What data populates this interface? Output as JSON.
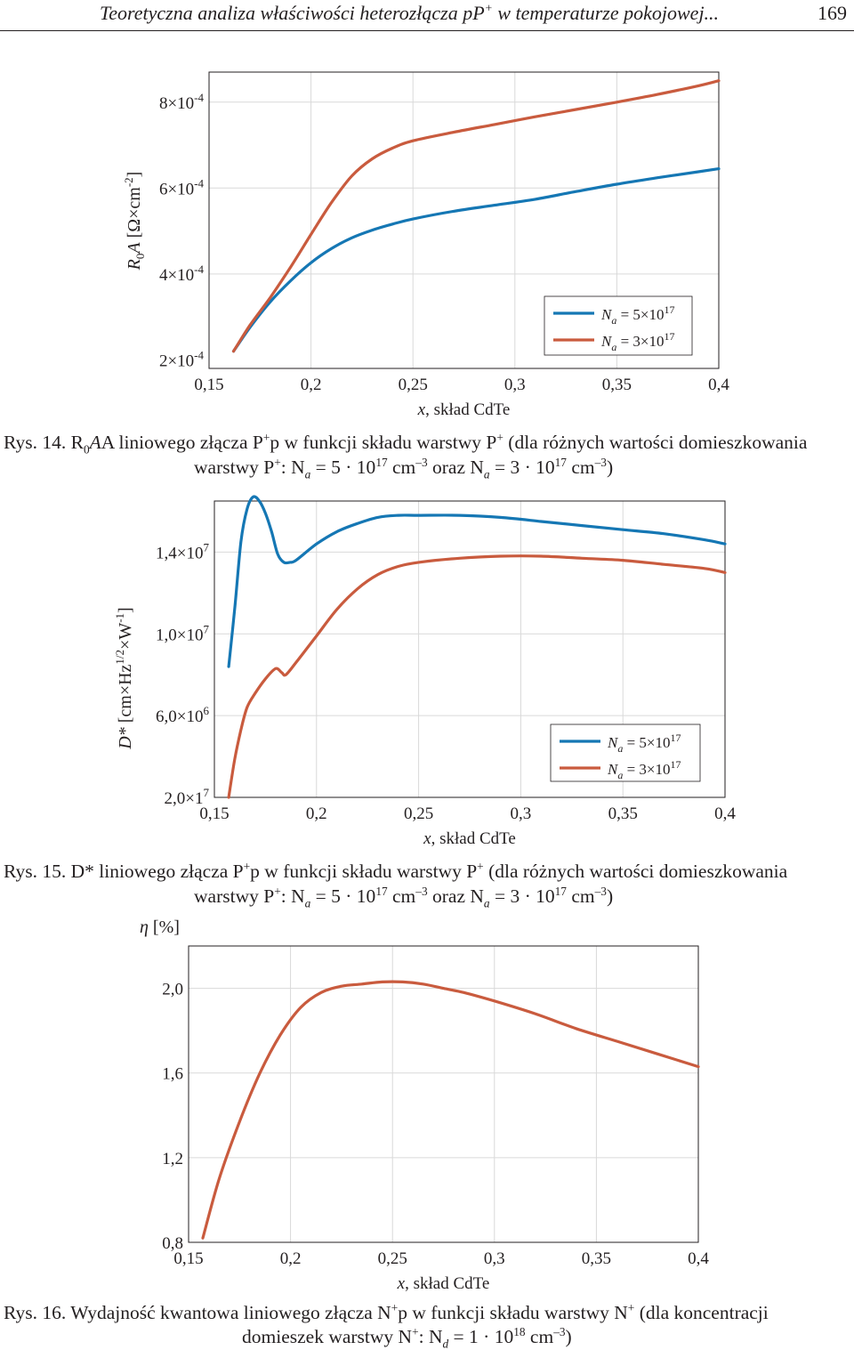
{
  "header": {
    "title": "Teoretyczna analiza właściwości heterozłącza pP",
    "title_sup": "+",
    "title_tail": " w temperaturze pokojowej...",
    "page_number": "169"
  },
  "legend_common": {
    "entry1": {
      "pre": "N",
      "sub": "a",
      "mid": " = 5×10",
      "exp": "17"
    },
    "entry2": {
      "pre": "N",
      "sub": "a",
      "mid": " = 3×10",
      "exp": "17"
    },
    "color1": "#1577b4",
    "color2": "#c95b3e"
  },
  "figure14": {
    "caption_line1": "Rys. 14. R",
    "caption_sub1": "0",
    "caption_line1_b": "A liniowego złącza P",
    "caption_line1_c": "p w funkcji składu warstwy P",
    "caption_line1_d": " (dla różnych wartości domieszkowania",
    "caption_line2_a": "warstwy P",
    "caption_line2_b": ": N",
    "caption_line2_c": " = 5 · 10",
    "caption_line2_d": " cm",
    "caption_line2_e": " oraz N",
    "caption_line2_f": " = 3 · 10",
    "caption_line2_g": " cm",
    "caption_line2_h": ")",
    "sup_plus": "+",
    "sub_a": "a",
    "sup_17": "17",
    "sup_m3": "–3",
    "chart_data": {
      "type": "line",
      "ylabel": "R0A [Ω×cm-2]",
      "xlabel": "x, skład CdTe",
      "xlim": [
        0.15,
        0.4
      ],
      "ylim": [
        0.00018,
        0.00087
      ],
      "xticks": [
        "0,15",
        "0,2",
        "0,25",
        "0,3",
        "0,35",
        "0,4"
      ],
      "yticks": [
        "2×10-4",
        "4×10-4",
        "6×10-4",
        "8×10-4"
      ],
      "grid": true,
      "legend": "bottom-right",
      "series": [
        {
          "name": "Na = 5×10^17",
          "x": [
            0.162,
            0.17,
            0.18,
            0.19,
            0.2,
            0.21,
            0.22,
            0.23,
            0.24,
            0.25,
            0.27,
            0.29,
            0.31,
            0.33,
            0.35,
            0.37,
            0.39,
            0.4
          ],
          "y": [
            0.00022,
            0.000275,
            0.000335,
            0.000384,
            0.000426,
            0.000459,
            0.000484,
            0.000502,
            0.000516,
            0.000528,
            0.000546,
            0.00056,
            0.000574,
            0.000592,
            0.000609,
            0.000624,
            0.000638,
            0.000645
          ]
        },
        {
          "name": "Na = 3×10^17",
          "x": [
            0.162,
            0.17,
            0.18,
            0.19,
            0.2,
            0.21,
            0.22,
            0.23,
            0.24,
            0.25,
            0.27,
            0.29,
            0.31,
            0.33,
            0.35,
            0.37,
            0.39,
            0.4
          ],
          "y": [
            0.00022,
            0.00028,
            0.000345,
            0.000416,
            0.000492,
            0.000566,
            0.000628,
            0.000668,
            0.000693,
            0.00071,
            0.00073,
            0.000748,
            0.000766,
            0.000783,
            0.0008,
            0.000818,
            0.000838,
            0.00085
          ]
        }
      ]
    },
    "ylabel_R": "R",
    "ylabel_sub": "0",
    "ylabel_A": "A",
    "ylabel_unit": " [Ω×cm",
    "ylabel_exp": "-2",
    "ylabel_close": "]",
    "ytick_labels": [
      {
        "m": "2×10",
        "e": "-4"
      },
      {
        "m": "4×10",
        "e": "-4"
      },
      {
        "m": "6×10",
        "e": "-4"
      },
      {
        "m": "8×10",
        "e": "-4"
      }
    ],
    "xlabel_x": "x",
    "xlabel_rest": ", skład CdTe"
  },
  "figure15": {
    "caption_line1_a": "Rys. 15. D* liniowego złącza P",
    "caption_line1_b": "p w funkcji składu warstwy P",
    "caption_line1_c": " (dla różnych wartości domieszkowania",
    "chart_data": {
      "type": "line",
      "ylabel": "D* [cm×Hz1/2×W-1]",
      "xlabel": "x, skład CdTe",
      "xlim": [
        0.15,
        0.4
      ],
      "ylim": [
        2000000,
        16500000
      ],
      "xticks": [
        "0,15",
        "0,2",
        "0,25",
        "0,3",
        "0,35",
        "0,4"
      ],
      "yticks": [
        "2,0×17",
        "6,0×106",
        "1,0×107",
        "1,4×107"
      ],
      "grid": true,
      "legend": "bottom-right",
      "series": [
        {
          "name": "Na = 5×10^17",
          "x": [
            0.157,
            0.16,
            0.163,
            0.166,
            0.169,
            0.172,
            0.175,
            0.178,
            0.181,
            0.184,
            0.187,
            0.19,
            0.2,
            0.21,
            0.22,
            0.23,
            0.24,
            0.25,
            0.27,
            0.29,
            0.31,
            0.33,
            0.35,
            0.37,
            0.39,
            0.4
          ],
          "y": [
            8400000,
            11300000,
            14500000,
            16100000,
            16700000,
            16500000,
            15900000,
            15000000,
            13900000,
            13500000,
            13500000,
            13600000,
            14400000,
            15000000,
            15400000,
            15700000,
            15800000,
            15800000,
            15800000,
            15700000,
            15500000,
            15300000,
            15100000,
            14900000,
            14600000,
            14400000
          ]
        },
        {
          "name": "Na = 3×10^17",
          "x": [
            0.157,
            0.16,
            0.163,
            0.166,
            0.17,
            0.175,
            0.18,
            0.183,
            0.185,
            0.19,
            0.2,
            0.21,
            0.22,
            0.23,
            0.24,
            0.25,
            0.27,
            0.29,
            0.31,
            0.33,
            0.35,
            0.37,
            0.39,
            0.4
          ],
          "y": [
            2000000,
            3900000,
            5300000,
            6400000,
            7100000,
            7800000,
            8300000,
            8100000,
            8000000,
            8600000,
            9900000,
            11200000,
            12200000,
            12900000,
            13300000,
            13500000,
            13700000,
            13800000,
            13800000,
            13700000,
            13600000,
            13400000,
            13200000,
            13000000
          ]
        }
      ]
    },
    "ylabel_D": "D*",
    "ylabel_unit": " [cm×Hz",
    "ylabel_exp1": "1/2",
    "ylabel_mid": "×W",
    "ylabel_exp2": "-1",
    "ylabel_close": "]",
    "ytick_labels": [
      {
        "m": "2,0×1",
        "e": "7"
      },
      {
        "m": "6,0×10",
        "e": "6"
      },
      {
        "m": "1,0×10",
        "e": "7"
      },
      {
        "m": "1,4×10",
        "e": "7"
      }
    ]
  },
  "figure16": {
    "caption_line1_a": "Rys. 16. Wydajność kwantowa liniowego złącza N",
    "caption_line1_b": "p w funkcji składu warstwy N",
    "caption_line1_c": " (dla koncentracji",
    "caption_line2_a": "domieszek warstwy N",
    "caption_line2_b": ": N",
    "caption_line2_sub": "d",
    "caption_line2_c": " = 1 · 10",
    "caption_line2_exp": "18",
    "caption_line2_d": " cm",
    "caption_line2_e": ")",
    "chart_data": {
      "type": "line",
      "ylabel": "η [%]",
      "xlabel": "x, skład CdTe",
      "xlim": [
        0.15,
        0.4
      ],
      "ylim": [
        0.8,
        2.2
      ],
      "xticks": [
        "0,15",
        "0,2",
        "0,25",
        "0,3",
        "0,35",
        "0,4"
      ],
      "yticks": [
        "0,8",
        "1,2",
        "1,6",
        "2,0"
      ],
      "grid": true,
      "series": [
        {
          "x": [
            0.157,
            0.165,
            0.175,
            0.185,
            0.195,
            0.205,
            0.215,
            0.225,
            0.235,
            0.245,
            0.255,
            0.265,
            0.275,
            0.285,
            0.3,
            0.32,
            0.34,
            0.36,
            0.38,
            0.4
          ],
          "y": [
            0.82,
            1.1,
            1.37,
            1.6,
            1.78,
            1.91,
            1.98,
            2.01,
            2.02,
            2.03,
            2.03,
            2.02,
            2.0,
            1.98,
            1.94,
            1.88,
            1.81,
            1.75,
            1.69,
            1.63
          ]
        }
      ]
    },
    "ylabel_eta": "η",
    "ylabel_unit": " [%]"
  }
}
